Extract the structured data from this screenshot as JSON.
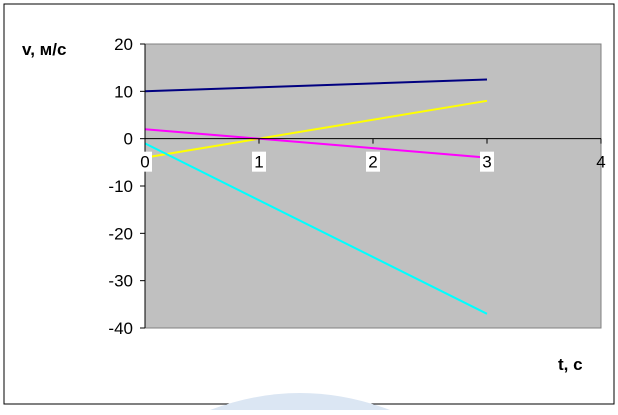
{
  "chart_data": {
    "type": "line",
    "xlabel": "t, с",
    "ylabel": "v, м/с",
    "xlim": [
      0,
      4
    ],
    "ylim": [
      -40,
      20
    ],
    "x_ticks": [
      0,
      1,
      2,
      3,
      4
    ],
    "y_ticks": [
      20,
      10,
      0,
      -10,
      -20,
      -30,
      -40
    ],
    "grid": false,
    "plot_background": "#c0c0c0",
    "series": [
      {
        "color": "#000080",
        "x": [
          0,
          3
        ],
        "y": [
          10,
          12.5
        ]
      },
      {
        "color": "#ffff00",
        "x": [
          0,
          3
        ],
        "y": [
          -4,
          8
        ]
      },
      {
        "color": "#ff00ff",
        "x": [
          0,
          3
        ],
        "y": [
          2,
          -4
        ]
      },
      {
        "color": "#00ffff",
        "x": [
          0,
          3
        ],
        "y": [
          -1,
          -37
        ]
      }
    ]
  },
  "colors": {
    "plot_area": "#c0c0c0",
    "frame": "#000000",
    "watermark": "#dbe6f3"
  }
}
